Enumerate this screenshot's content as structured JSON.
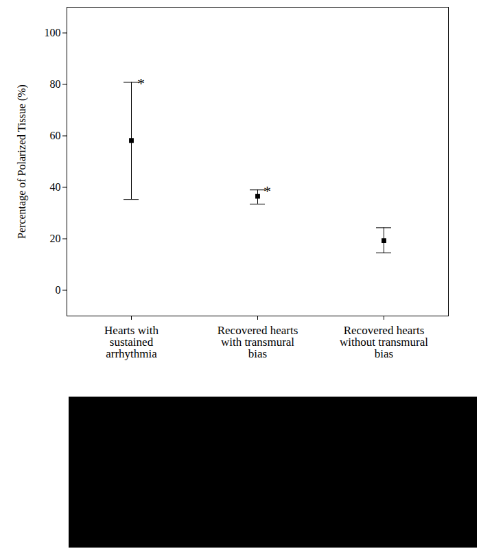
{
  "chart_data": {
    "type": "scatter",
    "categories": [
      "Hearts with sustained arrhythmia",
      "Recovered hearts with transmural bias",
      "Recovered hearts without transmural bias"
    ],
    "values": [
      58.2,
      36.5,
      19.3
    ],
    "error_low": [
      35.3,
      33.5,
      14.5
    ],
    "error_high": [
      80.8,
      39.0,
      24.3
    ],
    "annotations": [
      {
        "category": "Hearts with sustained arrhythmia",
        "text": "*"
      },
      {
        "category": "Recovered hearts with transmural bias",
        "text": "*"
      }
    ],
    "ylabel": "Percentage of Polarized Tissue (%)",
    "ylim": [
      -10,
      110
    ],
    "yticks": [
      0,
      20,
      40,
      60,
      80,
      100
    ],
    "color": "#000000",
    "marker": "square",
    "grid": false
  }
}
